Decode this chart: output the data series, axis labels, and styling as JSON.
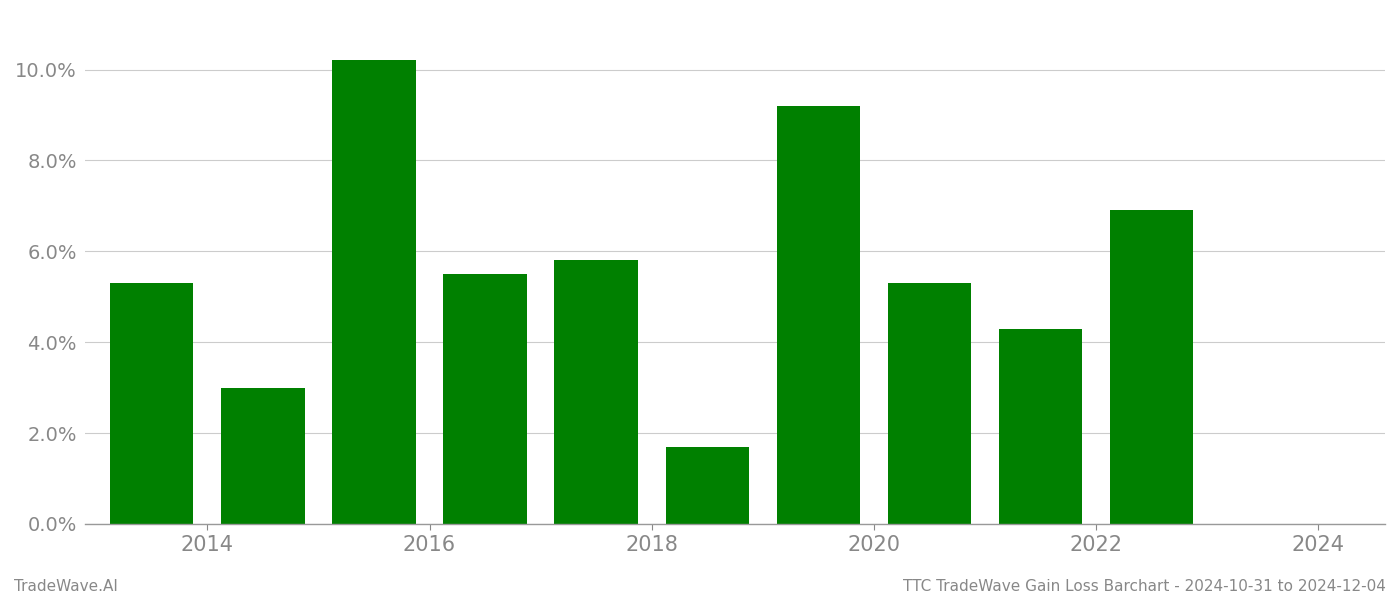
{
  "years": [
    2014,
    2015,
    2016,
    2017,
    2018,
    2019,
    2020,
    2021,
    2022,
    2023
  ],
  "values": [
    0.053,
    0.03,
    0.102,
    0.055,
    0.058,
    0.017,
    0.092,
    0.053,
    0.043,
    0.069
  ],
  "bar_color": "#008000",
  "ylim": [
    0,
    0.112
  ],
  "yticks": [
    0.0,
    0.02,
    0.04,
    0.06,
    0.08,
    0.1
  ],
  "xtick_label_positions": [
    2014.5,
    2016.5,
    2018.5,
    2020.5,
    2022.5,
    2024.5
  ],
  "xtick_labels": [
    "2014",
    "2016",
    "2018",
    "2020",
    "2022",
    "2024"
  ],
  "footer_left": "TradeWave.AI",
  "footer_right": "TTC TradeWave Gain Loss Barchart - 2024-10-31 to 2024-12-04",
  "background_color": "#ffffff",
  "grid_color": "#cccccc",
  "tick_color": "#999999",
  "label_color": "#888888",
  "bar_width": 0.75
}
